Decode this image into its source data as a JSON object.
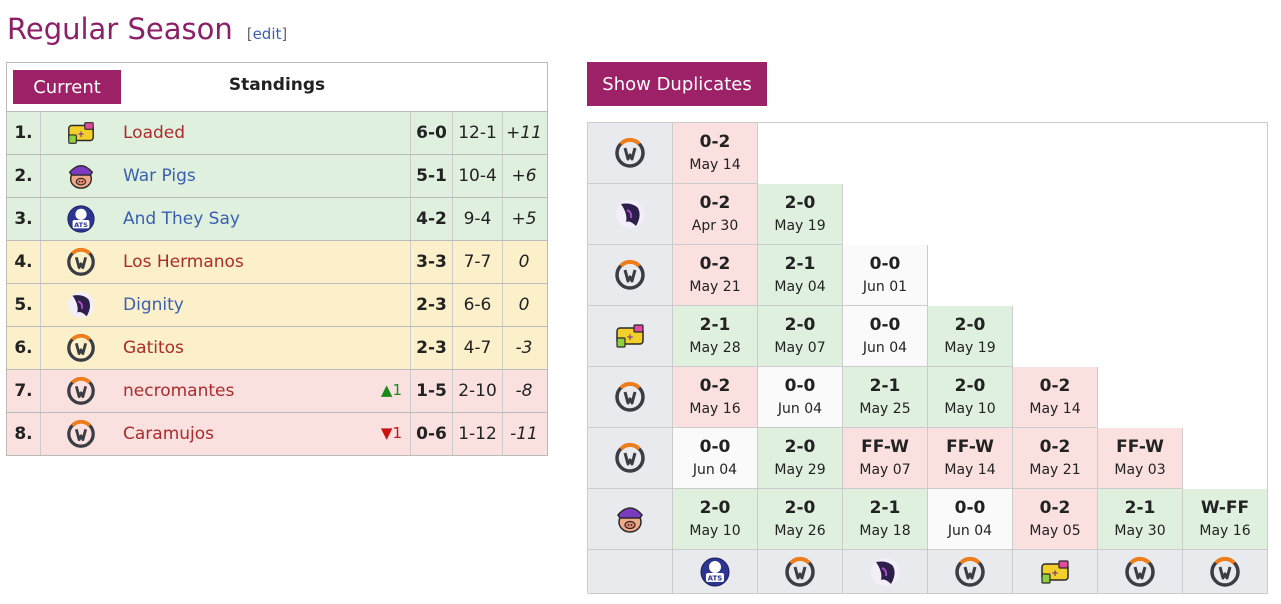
{
  "header": {
    "title": "Regular Season",
    "edit_open": "[",
    "edit_label": "edit",
    "edit_close": "]"
  },
  "standings": {
    "current_label": "Current",
    "title": "Standings",
    "rows": [
      {
        "rank": "1.",
        "team": "Loaded",
        "logo": "loaded-logo-icon",
        "movement": "",
        "record": "6-0",
        "games": "12-1",
        "diff": "+11",
        "color": "green",
        "link": "red"
      },
      {
        "rank": "2.",
        "team": "War Pigs",
        "logo": "war-pigs-logo-icon",
        "movement": "",
        "record": "5-1",
        "games": "10-4",
        "diff": "+6",
        "color": "green",
        "link": "blue"
      },
      {
        "rank": "3.",
        "team": "And They Say",
        "logo": "and-they-say-logo-icon",
        "movement": "",
        "record": "4-2",
        "games": "9-4",
        "diff": "+5",
        "color": "green",
        "link": "blue"
      },
      {
        "rank": "4.",
        "team": "Los Hermanos",
        "logo": "overwatch-logo-icon",
        "movement": "",
        "record": "3-3",
        "games": "7-7",
        "diff": "0",
        "color": "yellow",
        "link": "red"
      },
      {
        "rank": "5.",
        "team": "Dignity",
        "logo": "dignity-logo-icon",
        "movement": "",
        "record": "2-3",
        "games": "6-6",
        "diff": "0",
        "color": "yellow",
        "link": "blue"
      },
      {
        "rank": "6.",
        "team": "Gatitos",
        "logo": "overwatch-logo-icon",
        "movement": "",
        "record": "2-3",
        "games": "4-7",
        "diff": "-3",
        "color": "yellow",
        "link": "red"
      },
      {
        "rank": "7.",
        "team": "necromantes",
        "logo": "overwatch-logo-icon",
        "movement": "▲1",
        "movement_dir": "up",
        "record": "1-5",
        "games": "2-10",
        "diff": "-8",
        "color": "red",
        "link": "red"
      },
      {
        "rank": "8.",
        "team": "Caramujos",
        "logo": "overwatch-logo-icon",
        "movement": "▼1",
        "movement_dir": "down",
        "record": "0-6",
        "games": "1-12",
        "diff": "-11",
        "color": "red",
        "link": "red"
      }
    ]
  },
  "show_duplicates_label": "Show Duplicates",
  "matrix": {
    "row_logos": [
      "overwatch-logo-icon",
      "dignity-logo-icon",
      "overwatch-logo-icon",
      "loaded-logo-icon",
      "overwatch-logo-icon",
      "overwatch-logo-icon",
      "war-pigs-logo-icon"
    ],
    "col_logos": [
      "and-they-say-logo-icon",
      "overwatch-logo-icon",
      "dignity-logo-icon",
      "overwatch-logo-icon",
      "loaded-logo-icon",
      "overwatch-logo-icon",
      "overwatch-logo-icon"
    ],
    "rows": [
      [
        {
          "score": "0-2",
          "date": "May 14",
          "result": "loss"
        }
      ],
      [
        {
          "score": "0-2",
          "date": "Apr 30",
          "result": "loss"
        },
        {
          "score": "2-0",
          "date": "May 19",
          "result": "win"
        }
      ],
      [
        {
          "score": "0-2",
          "date": "May 21",
          "result": "loss"
        },
        {
          "score": "2-1",
          "date": "May 04",
          "result": "win"
        },
        {
          "score": "0-0",
          "date": "Jun 01",
          "result": "tie"
        }
      ],
      [
        {
          "score": "2-1",
          "date": "May 28",
          "result": "win"
        },
        {
          "score": "2-0",
          "date": "May 07",
          "result": "win"
        },
        {
          "score": "0-0",
          "date": "Jun 04",
          "result": "tie"
        },
        {
          "score": "2-0",
          "date": "May 19",
          "result": "win"
        }
      ],
      [
        {
          "score": "0-2",
          "date": "May 16",
          "result": "loss"
        },
        {
          "score": "0-0",
          "date": "Jun 04",
          "result": "tie"
        },
        {
          "score": "2-1",
          "date": "May 25",
          "result": "win"
        },
        {
          "score": "2-0",
          "date": "May 10",
          "result": "win"
        },
        {
          "score": "0-2",
          "date": "May 14",
          "result": "loss"
        }
      ],
      [
        {
          "score": "0-0",
          "date": "Jun 04",
          "result": "tie"
        },
        {
          "score": "2-0",
          "date": "May 29",
          "result": "win"
        },
        {
          "score": "FF-W",
          "date": "May 07",
          "result": "loss"
        },
        {
          "score": "FF-W",
          "date": "May 14",
          "result": "loss"
        },
        {
          "score": "0-2",
          "date": "May 21",
          "result": "loss"
        },
        {
          "score": "FF-W",
          "date": "May 03",
          "result": "loss"
        }
      ],
      [
        {
          "score": "2-0",
          "date": "May 10",
          "result": "win"
        },
        {
          "score": "2-0",
          "date": "May 26",
          "result": "win"
        },
        {
          "score": "2-1",
          "date": "May 18",
          "result": "win"
        },
        {
          "score": "0-0",
          "date": "Jun 04",
          "result": "tie"
        },
        {
          "score": "0-2",
          "date": "May 05",
          "result": "loss"
        },
        {
          "score": "2-1",
          "date": "May 30",
          "result": "win"
        },
        {
          "score": "W-FF",
          "date": "May 16",
          "result": "win"
        }
      ]
    ]
  },
  "colors": {
    "accent": "#9c2167",
    "win": "#dff1de",
    "draw": "#fbf0c9",
    "loss": "#fbe0e0"
  }
}
